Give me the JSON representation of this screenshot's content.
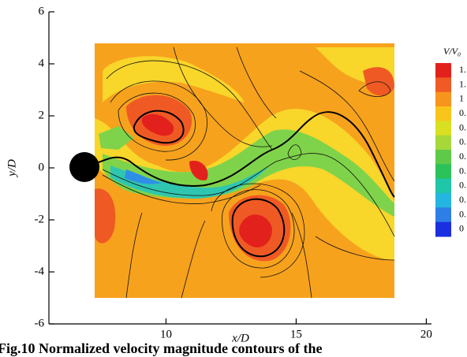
{
  "chart_data": {
    "type": "contour",
    "xlabel": "x/D",
    "ylabel": "y/D",
    "xlim": [
      5.5,
      20.2
    ],
    "xticks": [
      10,
      15,
      20
    ],
    "ylim": [
      -6,
      6
    ],
    "yticks": [
      6,
      4,
      2,
      0,
      -2,
      -4,
      -6
    ],
    "colorbar": {
      "title": "V/V₀",
      "labels": [
        "1.",
        "1.",
        "1",
        "0.",
        "0.",
        "0.",
        "0.",
        "0.",
        "0.",
        "0.",
        "0.",
        "0"
      ],
      "colors": [
        "#e3211c",
        "#f05a24",
        "#f7941d",
        "#f9c51b",
        "#d9e021",
        "#a6d83a",
        "#5fc94a",
        "#2cc25a",
        "#1fc7a8",
        "#24b6e0",
        "#2e7ee8",
        "#1a2fe0"
      ]
    },
    "caption": "Fig.10 Normalized velocity magnitude contours of the"
  }
}
